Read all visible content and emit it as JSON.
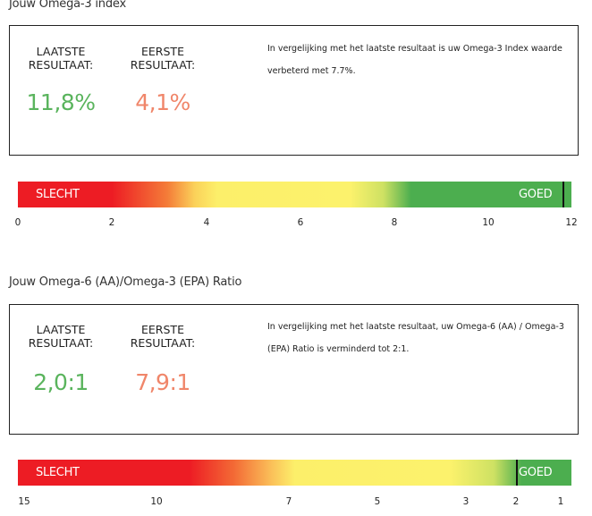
{
  "colors": {
    "good": "#4cae4f",
    "bad": "#ed1c24",
    "first": "#f0866a",
    "latest": "#5ab45d"
  },
  "omega3": {
    "title": "Jouw Omega-3 index",
    "latest_label": "LAATSTE RESULTAAT:",
    "first_label": "EERSTE RESULTAAT:",
    "latest_value": "11,8%",
    "first_value": "4,1%",
    "note": "In vergelijking met het laatste resultaat is uw Omega-3 Index waarde verbeterd met 7.7%.",
    "bar_bad": "SLECHT",
    "bar_good": "GOED",
    "ticks": [
      "0",
      "2",
      "4",
      "6",
      "8",
      "10",
      "12"
    ],
    "marker_value": 11.8
  },
  "ratio": {
    "title": "Jouw Omega-6 (AA)/Omega-3 (EPA) Ratio",
    "latest_label": "LAATSTE RESULTAAT:",
    "first_label": "EERSTE RESULTAAT:",
    "latest_value": "2,0:1",
    "first_value": "7,9:1",
    "note": "In vergelijking met het laatste resultaat, uw Omega-6 (AA) / Omega-3 (EPA) Ratio is verminderd tot 2:1.",
    "bar_bad": "SLECHT",
    "bar_good": "GOED",
    "ticks": [
      "15",
      "10",
      "7",
      "5",
      "3",
      "2",
      "1"
    ],
    "marker_value": 2
  }
}
